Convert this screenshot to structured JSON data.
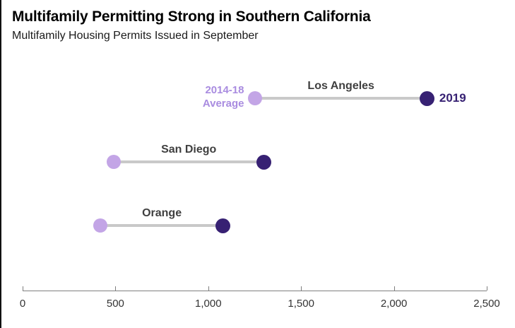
{
  "header": {
    "title": "Multifamily Permitting Strong in Southern California",
    "subtitle": "Multifamily Housing Permits Issued in September"
  },
  "chart_data": {
    "type": "scatter",
    "variant": "dumbbell",
    "title": "Multifamily Permitting Strong in Southern California",
    "subtitle": "Multifamily Housing Permits Issued in September",
    "categories": [
      "Los Angeles",
      "San Diego",
      "Orange"
    ],
    "series": [
      {
        "name": "2014-18 Average",
        "values": [
          1250,
          490,
          420
        ],
        "color": "#c3a5e6"
      },
      {
        "name": "2019",
        "values": [
          2180,
          1300,
          1080
        ],
        "color": "#372173"
      }
    ],
    "annotations": {
      "average_label_line1": "2014-18",
      "average_label_line2": "Average",
      "year_label": "2019"
    },
    "xlabel": "",
    "ylabel": "",
    "xlim": [
      0,
      2500
    ],
    "x_ticks": [
      0,
      500,
      1000,
      1500,
      2000,
      2500
    ],
    "x_tick_labels": [
      "0",
      "500",
      "1,000",
      "1,500",
      "2,000",
      "2,500"
    ],
    "grid": false,
    "legend_position": "inline-first-row"
  },
  "colors": {
    "average_dot": "#c3a5e6",
    "average_text": "#a98ce0",
    "year_dot": "#372173",
    "year_text": "#372173",
    "category_label": "#3f3f3f",
    "connector": "#c9c9c9",
    "axis": "#7f7f7f"
  }
}
